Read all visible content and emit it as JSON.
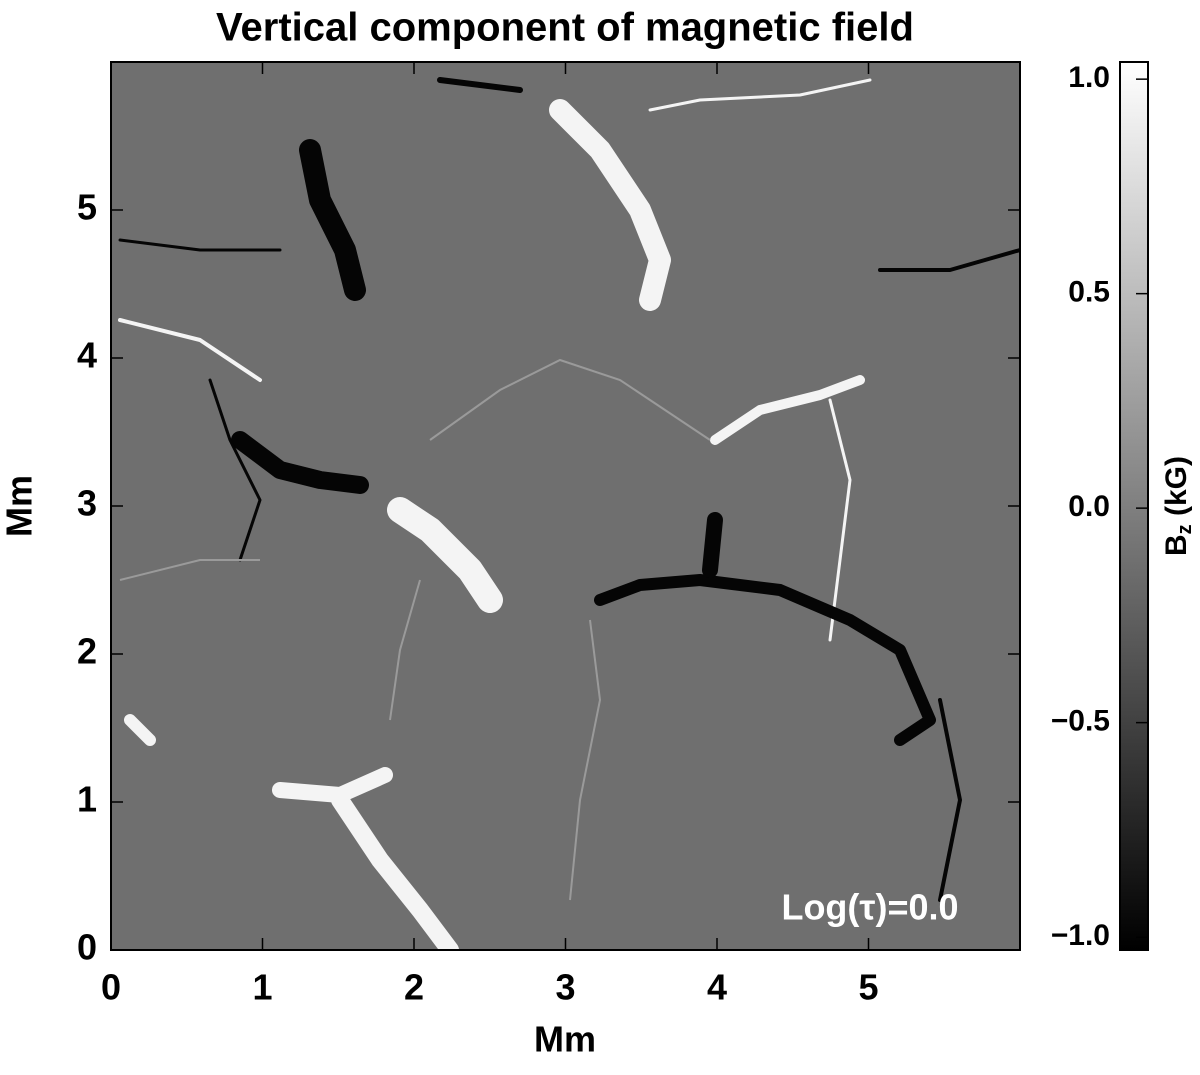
{
  "chart_data": {
    "type": "heatmap",
    "title": "Vertical component of magnetic field",
    "x_label": "Mm",
    "y_label": "Mm",
    "xlim": [
      0,
      6
    ],
    "ylim": [
      0,
      6
    ],
    "xticks": [
      0,
      1,
      2,
      3,
      4,
      5
    ],
    "yticks": [
      0,
      1,
      2,
      3,
      4,
      5
    ],
    "colorbar_label": {
      "base": "B",
      "sub": "z",
      "rest": " (kG)"
    },
    "clim": [
      -1.03,
      1.04
    ],
    "cticks": [
      {
        "value": -1,
        "label": "−1.0"
      },
      {
        "value": -0.5,
        "label": "−0.5"
      },
      {
        "value": 0,
        "label": "0.0"
      },
      {
        "value": 0.5,
        "label": "0.5"
      },
      {
        "value": 1,
        "label": "1.0"
      }
    ],
    "colormap": [
      "#000000",
      "#ffffff"
    ],
    "annotation": "Log(τ)=0.0"
  }
}
